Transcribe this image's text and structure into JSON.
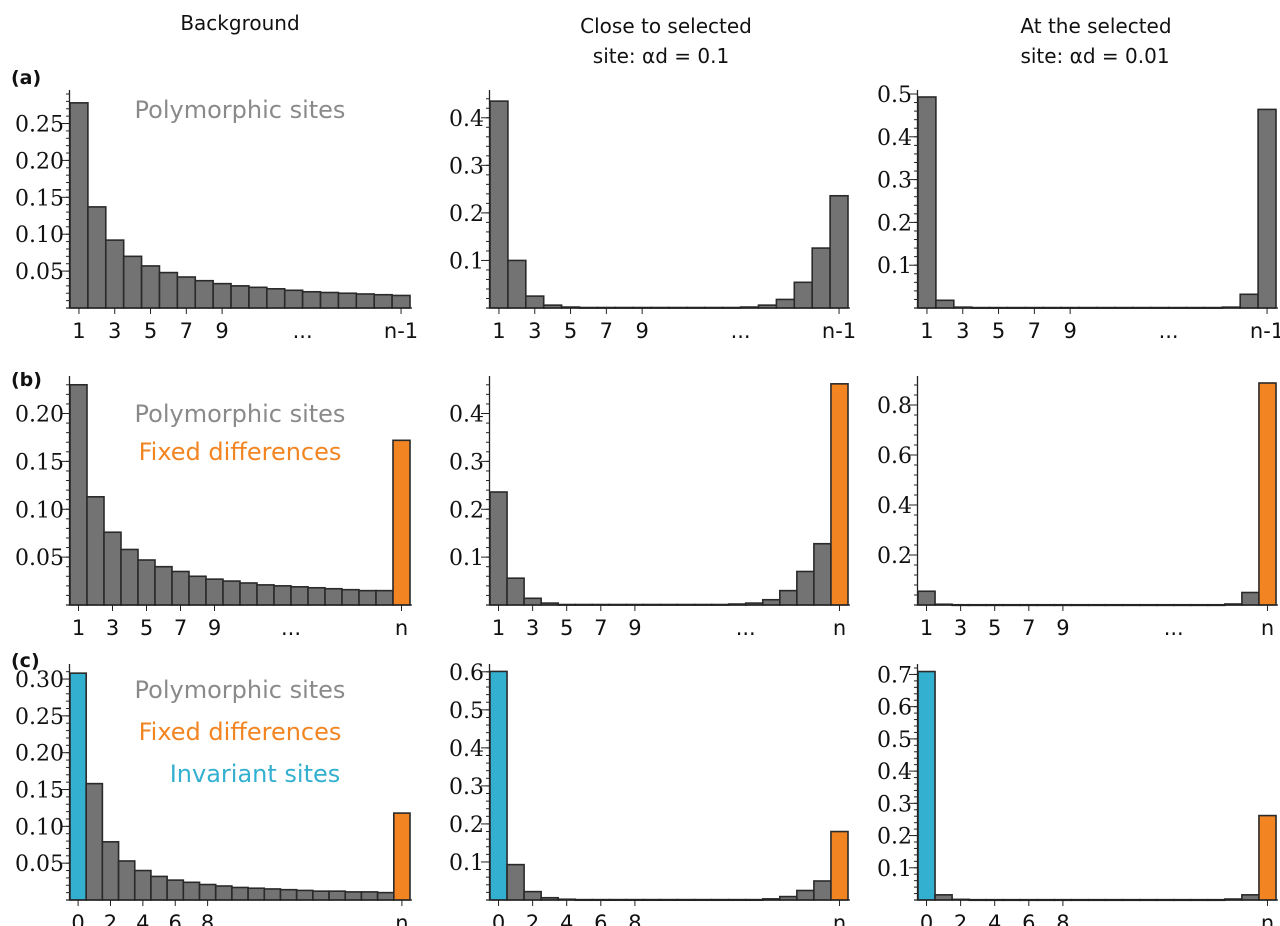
{
  "column_titles": [
    [
      "Background"
    ],
    [
      "Close to selected",
      "site: αd = 0.1"
    ],
    [
      "At the selected",
      "site: αd = 0.01"
    ]
  ],
  "row_labels": [
    "(a)",
    "(b)",
    "(c)"
  ],
  "colors": {
    "polymorphic": "#737373",
    "fixed": "#f28522",
    "invariant": "#33b0d0",
    "polymorphic_text": "#8a8a8a",
    "fixed_text": "#f28522",
    "invariant_text": "#33b0d0"
  },
  "chart_data": [
    {
      "type": "bar",
      "row": 0,
      "col": 0,
      "values": [
        0.278,
        0.137,
        0.092,
        0.07,
        0.057,
        0.048,
        0.042,
        0.037,
        0.033,
        0.03,
        0.028,
        0.026,
        0.024,
        0.022,
        0.021,
        0.02,
        0.019,
        0.018,
        0.017
      ],
      "kinds": [
        "p",
        "p",
        "p",
        "p",
        "p",
        "p",
        "p",
        "p",
        "p",
        "p",
        "p",
        "p",
        "p",
        "p",
        "p",
        "p",
        "p",
        "p",
        "p"
      ],
      "ylim": [
        0,
        0.29
      ],
      "yticks": [
        0.05,
        0.1,
        0.15,
        0.2,
        0.25
      ],
      "ytick_labels": [
        "0.05",
        "0.10",
        "0.15",
        "0.20",
        "0.25"
      ],
      "minor_step": 0.01,
      "xticks": [
        {
          "index": 0,
          "label": "1"
        },
        {
          "index": 2,
          "label": "3"
        },
        {
          "index": 4,
          "label": "5"
        },
        {
          "index": 6,
          "label": "7"
        },
        {
          "index": 8,
          "label": "9"
        },
        {
          "pos": 12.5,
          "label": "..."
        },
        {
          "index": 18,
          "label": "n-1"
        }
      ],
      "legend": [
        {
          "text": "Polymorphic sites",
          "kind": "p"
        }
      ]
    },
    {
      "type": "bar",
      "row": 0,
      "col": 1,
      "values": [
        0.435,
        0.1,
        0.025,
        0.006,
        0.002,
        0.001,
        0.001,
        0.001,
        0.001,
        0.001,
        0.001,
        0.001,
        0.001,
        0.001,
        0.002,
        0.006,
        0.018,
        0.054,
        0.126,
        0.236
      ],
      "kinds": [
        "p",
        "p",
        "p",
        "p",
        "p",
        "p",
        "p",
        "p",
        "p",
        "p",
        "p",
        "p",
        "p",
        "p",
        "p",
        "p",
        "p",
        "p",
        "p",
        "p"
      ],
      "ylim": [
        0,
        0.45
      ],
      "yticks": [
        0.1,
        0.2,
        0.3,
        0.4
      ],
      "ytick_labels": [
        "0.1",
        "0.2",
        "0.3",
        "0.4"
      ],
      "minor_step": 0.02,
      "xticks": [
        {
          "index": 0,
          "label": "1"
        },
        {
          "index": 2,
          "label": "3"
        },
        {
          "index": 4,
          "label": "5"
        },
        {
          "index": 6,
          "label": "7"
        },
        {
          "index": 8,
          "label": "9"
        },
        {
          "pos": 13.5,
          "label": "..."
        },
        {
          "index": 19,
          "label": "n-1"
        }
      ],
      "legend": []
    },
    {
      "type": "bar",
      "row": 0,
      "col": 2,
      "values": [
        0.493,
        0.018,
        0.002,
        0.001,
        0.001,
        0.001,
        0.001,
        0.001,
        0.001,
        0.001,
        0.001,
        0.001,
        0.001,
        0.001,
        0.001,
        0.001,
        0.001,
        0.002,
        0.032,
        0.464
      ],
      "kinds": [
        "p",
        "p",
        "p",
        "p",
        "p",
        "p",
        "p",
        "p",
        "p",
        "p",
        "p",
        "p",
        "p",
        "p",
        "p",
        "p",
        "p",
        "p",
        "p",
        "p"
      ],
      "ylim": [
        0,
        0.5
      ],
      "yticks": [
        0.1,
        0.2,
        0.3,
        0.4,
        0.5
      ],
      "ytick_labels": [
        "0.1",
        "0.2",
        "0.3",
        "0.4",
        "0.5"
      ],
      "minor_step": 0.02,
      "xticks": [
        {
          "index": 0,
          "label": "1"
        },
        {
          "index": 2,
          "label": "3"
        },
        {
          "index": 4,
          "label": "5"
        },
        {
          "index": 6,
          "label": "7"
        },
        {
          "index": 8,
          "label": "9"
        },
        {
          "pos": 13.5,
          "label": "..."
        },
        {
          "index": 19,
          "label": "n-1"
        }
      ],
      "legend": []
    },
    {
      "type": "bar",
      "row": 1,
      "col": 0,
      "values": [
        0.23,
        0.113,
        0.076,
        0.058,
        0.047,
        0.04,
        0.035,
        0.03,
        0.027,
        0.025,
        0.023,
        0.021,
        0.02,
        0.019,
        0.018,
        0.017,
        0.016,
        0.015,
        0.015,
        0.172
      ],
      "kinds": [
        "p",
        "p",
        "p",
        "p",
        "p",
        "p",
        "p",
        "p",
        "p",
        "p",
        "p",
        "p",
        "p",
        "p",
        "p",
        "p",
        "p",
        "p",
        "p",
        "f"
      ],
      "ylim": [
        0,
        0.235
      ],
      "yticks": [
        0.05,
        0.1,
        0.15,
        0.2
      ],
      "ytick_labels": [
        "0.05",
        "0.10",
        "0.15",
        "0.20"
      ],
      "minor_step": 0.01,
      "xticks": [
        {
          "index": 0,
          "label": "1"
        },
        {
          "index": 2,
          "label": "3"
        },
        {
          "index": 4,
          "label": "5"
        },
        {
          "index": 6,
          "label": "7"
        },
        {
          "index": 8,
          "label": "9"
        },
        {
          "pos": 12.5,
          "label": "..."
        },
        {
          "index": 19,
          "label": "n"
        }
      ],
      "legend": [
        {
          "text": "Polymorphic sites",
          "kind": "p"
        },
        {
          "text": "Fixed differences",
          "kind": "f"
        }
      ]
    },
    {
      "type": "bar",
      "row": 1,
      "col": 1,
      "values": [
        0.236,
        0.056,
        0.014,
        0.004,
        0.001,
        0.001,
        0.001,
        0.001,
        0.001,
        0.001,
        0.001,
        0.001,
        0.001,
        0.001,
        0.002,
        0.004,
        0.011,
        0.03,
        0.07,
        0.128,
        0.462
      ],
      "kinds": [
        "p",
        "p",
        "p",
        "p",
        "p",
        "p",
        "p",
        "p",
        "p",
        "p",
        "p",
        "p",
        "p",
        "p",
        "p",
        "p",
        "p",
        "p",
        "p",
        "p",
        "f"
      ],
      "ylim": [
        0,
        0.47
      ],
      "yticks": [
        0.1,
        0.2,
        0.3,
        0.4
      ],
      "ytick_labels": [
        "0.1",
        "0.2",
        "0.3",
        "0.4"
      ],
      "minor_step": 0.02,
      "xticks": [
        {
          "index": 0,
          "label": "1"
        },
        {
          "index": 2,
          "label": "3"
        },
        {
          "index": 4,
          "label": "5"
        },
        {
          "index": 6,
          "label": "7"
        },
        {
          "index": 8,
          "label": "9"
        },
        {
          "pos": 14.5,
          "label": "..."
        },
        {
          "index": 20,
          "label": "n"
        }
      ],
      "legend": []
    },
    {
      "type": "bar",
      "row": 1,
      "col": 2,
      "values": [
        0.055,
        0.003,
        0.001,
        0.001,
        0.001,
        0.001,
        0.001,
        0.001,
        0.001,
        0.001,
        0.001,
        0.001,
        0.001,
        0.001,
        0.001,
        0.001,
        0.001,
        0.001,
        0.004,
        0.05,
        0.888
      ],
      "kinds": [
        "p",
        "p",
        "p",
        "p",
        "p",
        "p",
        "p",
        "p",
        "p",
        "p",
        "p",
        "p",
        "p",
        "p",
        "p",
        "p",
        "p",
        "p",
        "p",
        "p",
        "f"
      ],
      "ylim": [
        0,
        0.9
      ],
      "yticks": [
        0.2,
        0.4,
        0.6,
        0.8
      ],
      "ytick_labels": [
        "0.2",
        "0.4",
        "0.6",
        "0.8"
      ],
      "minor_step": 0.04,
      "xticks": [
        {
          "index": 0,
          "label": "1"
        },
        {
          "index": 2,
          "label": "3"
        },
        {
          "index": 4,
          "label": "5"
        },
        {
          "index": 6,
          "label": "7"
        },
        {
          "index": 8,
          "label": "9"
        },
        {
          "pos": 14.5,
          "label": "..."
        },
        {
          "index": 20,
          "label": "n"
        }
      ],
      "legend": []
    },
    {
      "type": "bar",
      "row": 2,
      "col": 0,
      "values": [
        0.308,
        0.158,
        0.079,
        0.053,
        0.04,
        0.032,
        0.027,
        0.024,
        0.021,
        0.019,
        0.017,
        0.016,
        0.015,
        0.014,
        0.013,
        0.012,
        0.012,
        0.011,
        0.011,
        0.01,
        0.118
      ],
      "kinds": [
        "i",
        "p",
        "p",
        "p",
        "p",
        "p",
        "p",
        "p",
        "p",
        "p",
        "p",
        "p",
        "p",
        "p",
        "p",
        "p",
        "p",
        "p",
        "p",
        "p",
        "f"
      ],
      "ylim": [
        0,
        0.315
      ],
      "yticks": [
        0.05,
        0.1,
        0.15,
        0.2,
        0.25,
        0.3
      ],
      "ytick_labels": [
        "0.05",
        "0.10",
        "0.15",
        "0.20",
        "0.25",
        "0.30"
      ],
      "minor_step": 0.01,
      "xticks": [
        {
          "index": 0,
          "label": "0"
        },
        {
          "index": 2,
          "label": "2"
        },
        {
          "index": 4,
          "label": "4"
        },
        {
          "index": 6,
          "label": "6"
        },
        {
          "index": 8,
          "label": "8"
        },
        {
          "pos": 13,
          "label": "..."
        },
        {
          "index": 20,
          "label": "n"
        }
      ],
      "legend": [
        {
          "text": "Polymorphic sites",
          "kind": "p"
        },
        {
          "text": "Fixed differences",
          "kind": "f"
        },
        {
          "text": "Invariant sites",
          "kind": "i"
        }
      ]
    },
    {
      "type": "bar",
      "row": 2,
      "col": 1,
      "values": [
        0.601,
        0.093,
        0.022,
        0.006,
        0.002,
        0.001,
        0.001,
        0.001,
        0.001,
        0.001,
        0.001,
        0.001,
        0.001,
        0.001,
        0.001,
        0.001,
        0.003,
        0.009,
        0.025,
        0.05,
        0.18
      ],
      "kinds": [
        "i",
        "p",
        "p",
        "p",
        "p",
        "p",
        "p",
        "p",
        "p",
        "p",
        "p",
        "p",
        "p",
        "p",
        "p",
        "p",
        "p",
        "p",
        "p",
        "p",
        "f"
      ],
      "ylim": [
        0,
        0.61
      ],
      "yticks": [
        0.1,
        0.2,
        0.3,
        0.4,
        0.5,
        0.6
      ],
      "ytick_labels": [
        "0.1",
        "0.2",
        "0.3",
        "0.4",
        "0.5",
        "0.6"
      ],
      "minor_step": 0.02,
      "xticks": [
        {
          "index": 0,
          "label": "0"
        },
        {
          "index": 2,
          "label": "2"
        },
        {
          "index": 4,
          "label": "4"
        },
        {
          "index": 6,
          "label": "6"
        },
        {
          "index": 8,
          "label": "8"
        },
        {
          "pos": 13.5,
          "label": "..."
        },
        {
          "index": 20,
          "label": "n"
        }
      ],
      "legend": []
    },
    {
      "type": "bar",
      "row": 2,
      "col": 2,
      "values": [
        0.709,
        0.016,
        0.002,
        0.001,
        0.001,
        0.001,
        0.001,
        0.001,
        0.001,
        0.001,
        0.001,
        0.001,
        0.001,
        0.001,
        0.001,
        0.001,
        0.001,
        0.001,
        0.003,
        0.016,
        0.262
      ],
      "kinds": [
        "i",
        "p",
        "p",
        "p",
        "p",
        "p",
        "p",
        "p",
        "p",
        "p",
        "p",
        "p",
        "p",
        "p",
        "p",
        "p",
        "p",
        "p",
        "p",
        "p",
        "f"
      ],
      "ylim": [
        0,
        0.72
      ],
      "yticks": [
        0.1,
        0.2,
        0.3,
        0.4,
        0.5,
        0.6,
        0.7
      ],
      "ytick_labels": [
        "0.1",
        "0.2",
        "0.3",
        "0.4",
        "0.5",
        "0.6",
        "0.7"
      ],
      "minor_step": 0.02,
      "xticks": [
        {
          "index": 0,
          "label": "0"
        },
        {
          "index": 2,
          "label": "2"
        },
        {
          "index": 4,
          "label": "4"
        },
        {
          "index": 6,
          "label": "6"
        },
        {
          "index": 8,
          "label": "8"
        },
        {
          "pos": 14,
          "label": "..."
        },
        {
          "index": 20,
          "label": "n"
        }
      ],
      "legend": []
    }
  ]
}
